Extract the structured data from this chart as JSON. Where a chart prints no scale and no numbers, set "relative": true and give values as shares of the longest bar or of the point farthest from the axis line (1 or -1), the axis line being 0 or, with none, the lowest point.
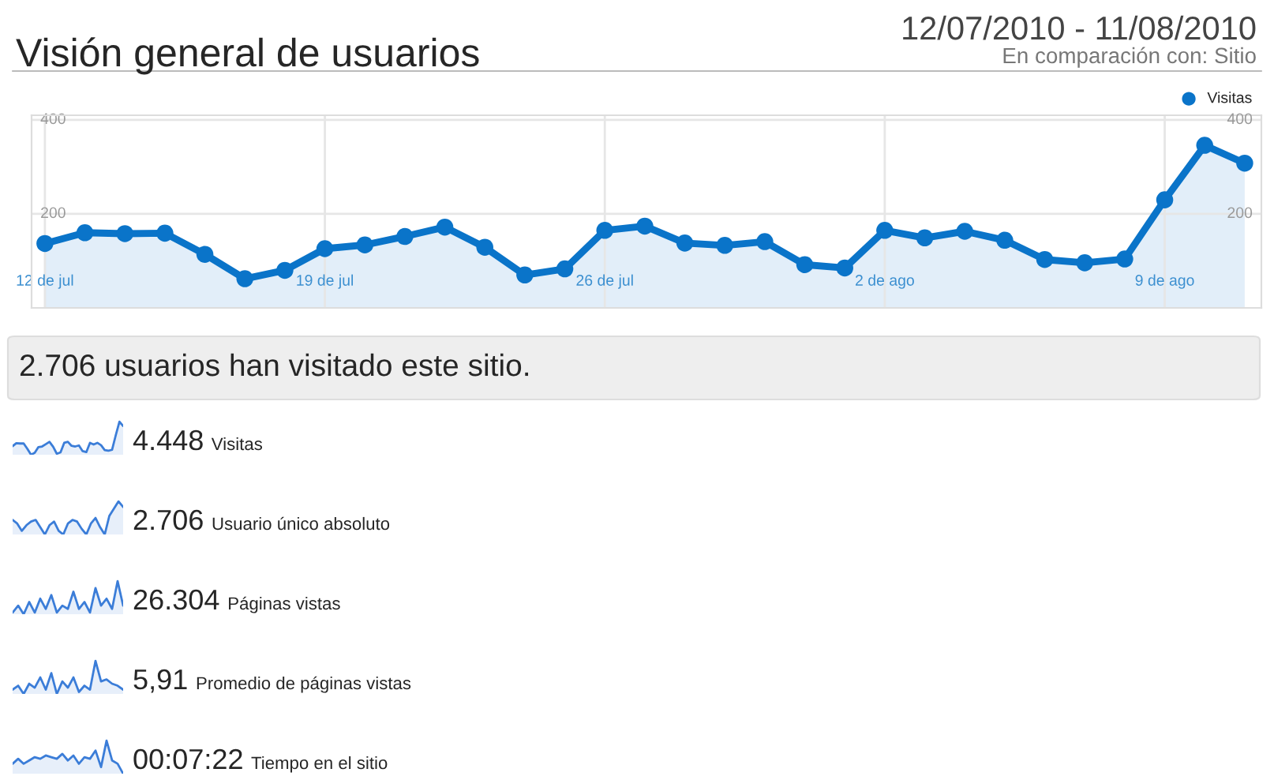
{
  "chart_data": [
    {
      "type": "area",
      "title": "Visión general de usuarios",
      "subtitle": "12/07/2010 - 11/08/2010",
      "annotations": [
        "En comparación con: Sitio",
        "2.706 usuarios han visitado este sitio."
      ],
      "x": [
        "2010-07-12",
        "2010-07-13",
        "2010-07-14",
        "2010-07-15",
        "2010-07-16",
        "2010-07-17",
        "2010-07-18",
        "2010-07-19",
        "2010-07-20",
        "2010-07-21",
        "2010-07-22",
        "2010-07-23",
        "2010-07-24",
        "2010-07-25",
        "2010-07-26",
        "2010-07-27",
        "2010-07-28",
        "2010-07-29",
        "2010-07-30",
        "2010-07-31",
        "2010-08-01",
        "2010-08-02",
        "2010-08-03",
        "2010-08-04",
        "2010-08-05",
        "2010-08-06",
        "2010-08-07",
        "2010-08-08",
        "2010-08-09",
        "2010-08-10",
        "2010-08-11"
      ],
      "series": [
        {
          "name": "Visitas",
          "color": "#0a74c9",
          "values": [
            137,
            160,
            158,
            159,
            114,
            62,
            80,
            126,
            134,
            152,
            172,
            129,
            70,
            83,
            165,
            174,
            138,
            133,
            141,
            92,
            85,
            165,
            149,
            163,
            144,
            103,
            96,
            104,
            230,
            346,
            308
          ]
        }
      ],
      "xlim": [
        "2010-07-11T16:00",
        "2010-08-11T10:00"
      ],
      "xticks": [
        {
          "value": "2010-07-12",
          "label": "12 de jul"
        },
        {
          "value": "2010-07-19",
          "label": "19 de jul"
        },
        {
          "value": "2010-07-26",
          "label": "26 de jul"
        },
        {
          "value": "2010-08-02",
          "label": "2 de ago"
        },
        {
          "value": "2010-08-09",
          "label": "9 de ago"
        }
      ],
      "ylim": [
        0,
        410
      ],
      "yticks": [
        200,
        400
      ],
      "y2lim": [
        0,
        410
      ],
      "y2ticks": [
        200,
        400
      ],
      "grid": true,
      "legend": "top right",
      "marker": "circle",
      "line_style": "solid"
    },
    {
      "type": "area",
      "relative": true,
      "annotations": [
        "4.448",
        "Visitas"
      ],
      "categories": [
        null,
        null,
        null,
        null,
        null,
        null,
        null,
        null,
        null,
        null,
        null,
        null,
        null,
        null,
        null,
        null,
        null,
        null,
        null,
        null,
        null,
        null,
        null,
        null,
        null,
        null,
        null,
        null,
        null,
        null,
        null
      ],
      "series": [
        {
          "color": "#3b7dd8",
          "values": [
            0.26,
            0.35,
            0.34,
            0.34,
            0.18,
            0,
            0.06,
            0.23,
            0.25,
            0.32,
            0.39,
            0.24,
            0.03,
            0.07,
            0.36,
            0.39,
            0.27,
            0.25,
            0.28,
            0.11,
            0.08,
            0.36,
            0.31,
            0.36,
            0.29,
            0.14,
            0.12,
            0.15,
            0.59,
            1,
            0.87
          ]
        }
      ]
    },
    {
      "type": "area",
      "relative": true,
      "annotations": [
        "2.706",
        "Usuario único absoluto"
      ],
      "categories": [
        null,
        null,
        null,
        null,
        null,
        null,
        null,
        null,
        null,
        null,
        null,
        null,
        null,
        null,
        null,
        null,
        null,
        null,
        null,
        null,
        null,
        null,
        null,
        null,
        null
      ],
      "series": [
        {
          "color": "#3b7dd8",
          "values": [
            0.44,
            0.33,
            0.11,
            0.28,
            0.39,
            0.44,
            0.22,
            0,
            0.28,
            0.39,
            0.11,
            0,
            0.33,
            0.44,
            0.39,
            0.17,
            0,
            0.33,
            0.5,
            0.22,
            0,
            0.56,
            0.78,
            1,
            0.83
          ]
        }
      ]
    },
    {
      "type": "area",
      "relative": true,
      "annotations": [
        "26.304",
        "Páginas vistas"
      ],
      "categories": [
        null,
        null,
        null,
        null,
        null,
        null,
        null,
        null,
        null,
        null,
        null,
        null,
        null,
        null,
        null,
        null,
        null,
        null,
        null,
        null,
        null
      ],
      "series": [
        {
          "color": "#3b7dd8",
          "values": [
            0.05,
            0.26,
            0,
            0.37,
            0.05,
            0.47,
            0.16,
            0.58,
            0.05,
            0.26,
            0.16,
            0.68,
            0.16,
            0.37,
            0.05,
            0.79,
            0.26,
            0.47,
            0.16,
            1,
            0.26
          ]
        }
      ]
    },
    {
      "type": "area",
      "relative": true,
      "annotations": [
        "5,91",
        "Promedio de páginas vistas"
      ],
      "categories": [
        null,
        null,
        null,
        null,
        null,
        null,
        null,
        null,
        null,
        null,
        null,
        null,
        null,
        null,
        null,
        null,
        null,
        null,
        null,
        null,
        null
      ],
      "series": [
        {
          "color": "#3b7dd8",
          "values": [
            0.13,
            0.25,
            0,
            0.31,
            0.19,
            0.5,
            0.13,
            0.63,
            0,
            0.38,
            0.19,
            0.5,
            0.06,
            0.25,
            0.13,
            1,
            0.38,
            0.44,
            0.31,
            0.25,
            0.13
          ]
        }
      ]
    },
    {
      "type": "area",
      "relative": true,
      "annotations": [
        "00:07:22",
        "Tiempo en el sitio"
      ],
      "categories": [
        null,
        null,
        null,
        null,
        null,
        null,
        null,
        null,
        null,
        null,
        null,
        null,
        null,
        null,
        null,
        null,
        null,
        null,
        null,
        null,
        null
      ],
      "series": [
        {
          "color": "#3b7dd8",
          "values": [
            0.3,
            0.45,
            0.3,
            0.4,
            0.5,
            0.45,
            0.55,
            0.5,
            0.45,
            0.6,
            0.4,
            0.55,
            0.3,
            0.5,
            0.45,
            0.7,
            0.2,
            1,
            0.4,
            0.3,
            0
          ]
        }
      ]
    }
  ]
}
